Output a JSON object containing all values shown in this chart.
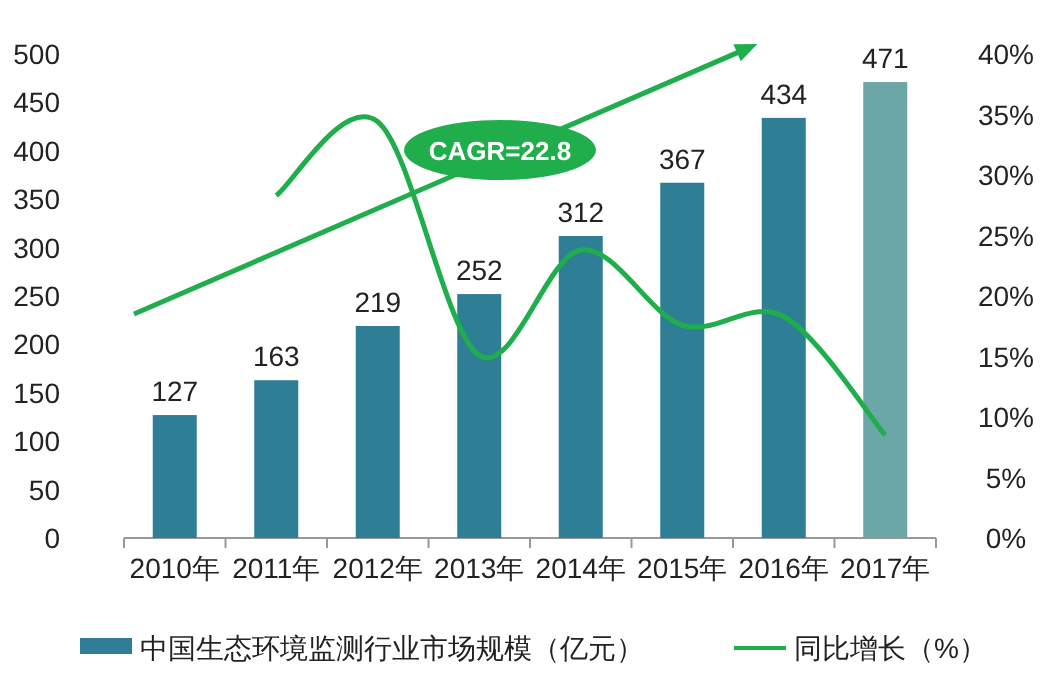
{
  "chart_data": {
    "type": "bar",
    "categories": [
      "2010年",
      "2011年",
      "2012年",
      "2013年",
      "2014年",
      "2015年",
      "2016年",
      "2017年"
    ],
    "series": [
      {
        "name": "中国生态环境监测行业市场规模（亿元）",
        "color": "#2e7f96",
        "colors": [
          "#2e7f96",
          "#2e7f96",
          "#2e7f96",
          "#2e7f96",
          "#2e7f96",
          "#2e7f96",
          "#2e7f96",
          "#6aa7a6"
        ],
        "values": [
          127,
          163,
          219,
          252,
          312,
          367,
          434,
          471
        ],
        "value_labels": [
          "127",
          "163",
          "219",
          "252",
          "312",
          "367",
          "434",
          "471"
        ]
      },
      {
        "name": "同比增长（%）",
        "type": "line",
        "axis": "y2",
        "color": "#1fae4b",
        "values": [
          null,
          28.3,
          34.4,
          15.1,
          23.8,
          17.6,
          18.3,
          8.5
        ]
      }
    ],
    "ylim": [
      0,
      500
    ],
    "yticks": [
      0,
      50,
      100,
      150,
      200,
      250,
      300,
      350,
      400,
      450,
      500
    ],
    "y2lim": [
      0,
      40
    ],
    "y2ticks": [
      {
        "value": 0,
        "label": "0%"
      },
      {
        "value": 5,
        "label": "5%"
      },
      {
        "value": 10,
        "label": "10%"
      },
      {
        "value": 15,
        "label": "15%"
      },
      {
        "value": 20,
        "label": "20%"
      },
      {
        "value": 25,
        "label": "25%"
      },
      {
        "value": 30,
        "label": "30%"
      },
      {
        "value": 35,
        "label": "35%"
      },
      {
        "value": 40,
        "label": "40%"
      }
    ],
    "legend": "bottom",
    "grid": false,
    "marker": "none",
    "annotations": [
      "CAGR=22.8"
    ]
  }
}
